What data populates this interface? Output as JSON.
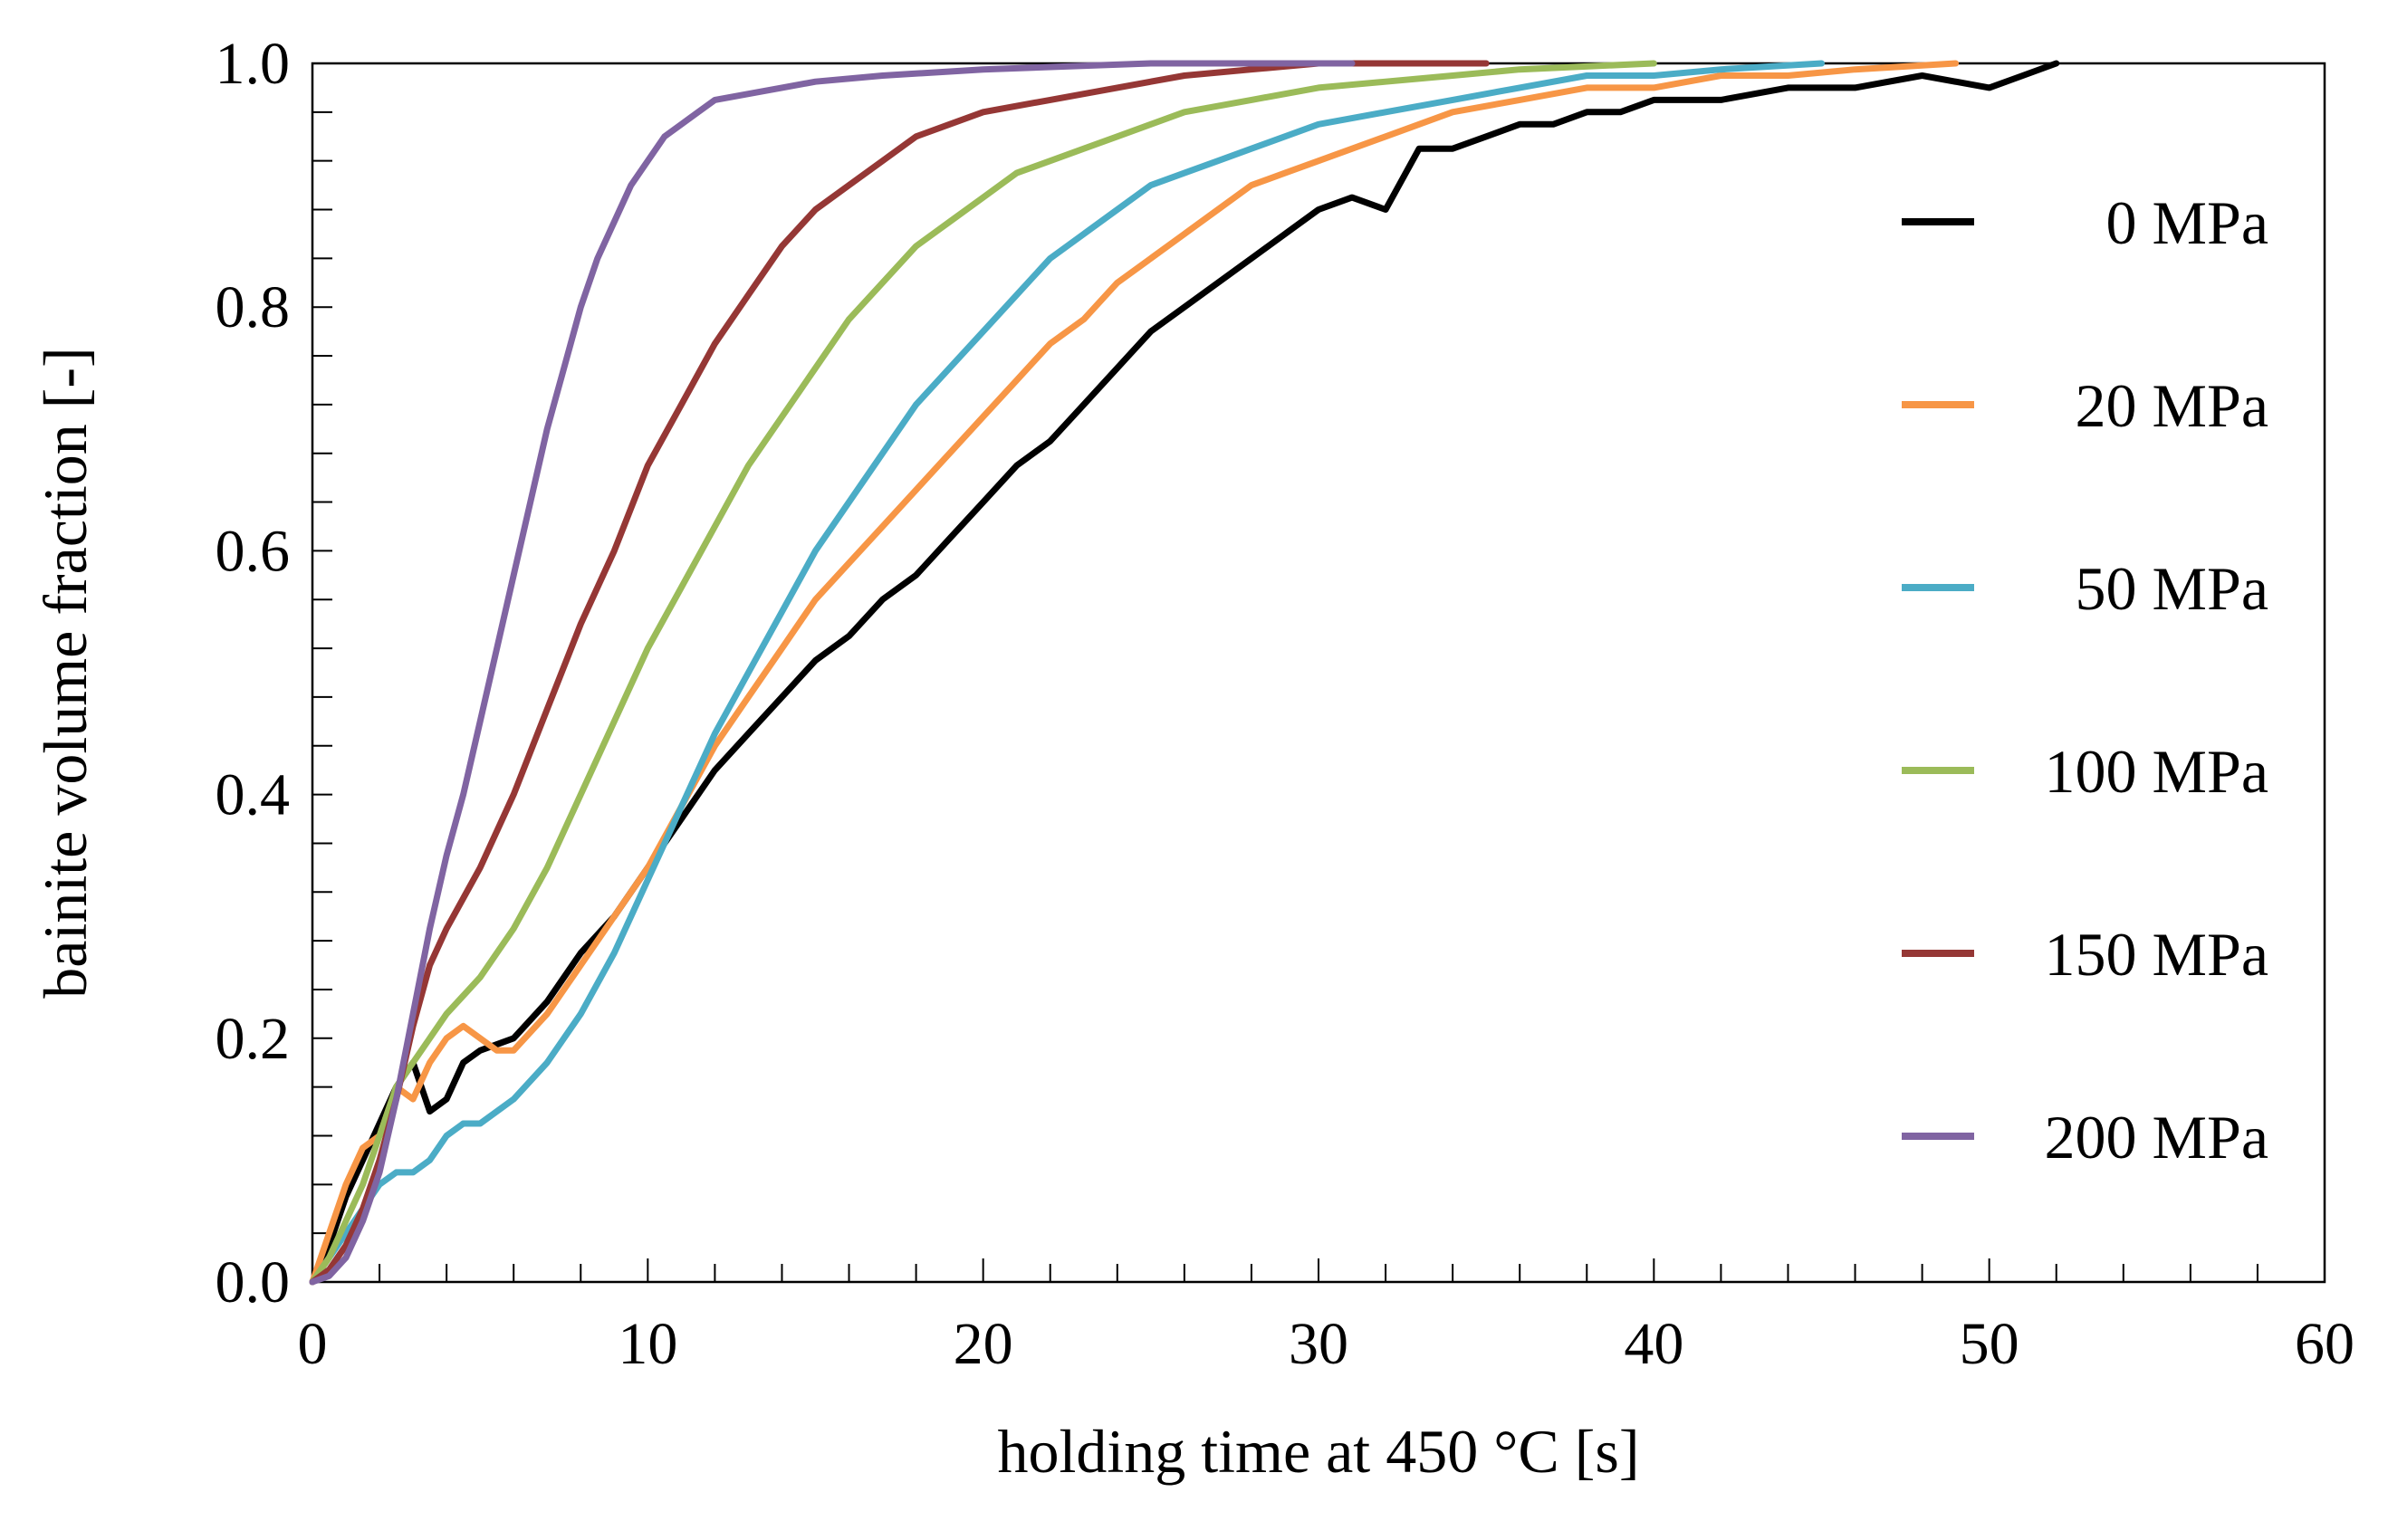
{
  "chart_data": {
    "type": "line",
    "title": "",
    "xlabel": "holding time at 450 °C [s]",
    "ylabel": "bainite volume fraction [-]",
    "xlim": [
      0,
      60
    ],
    "ylim": [
      0,
      1.0
    ],
    "x_ticks": [
      "0",
      "10",
      "20",
      "30",
      "40",
      "50",
      "60"
    ],
    "y_ticks": [
      "0.0",
      "0.2",
      "0.4",
      "0.6",
      "0.8",
      "1.0"
    ],
    "grid": false,
    "legend_position": "right",
    "series": [
      {
        "name": "0 MPa",
        "color": "#000000",
        "points": [
          [
            0,
            0
          ],
          [
            0.5,
            0.03
          ],
          [
            1,
            0.07
          ],
          [
            1.5,
            0.1
          ],
          [
            2,
            0.13
          ],
          [
            2.5,
            0.16
          ],
          [
            3,
            0.18
          ],
          [
            3.5,
            0.14
          ],
          [
            4,
            0.15
          ],
          [
            4.5,
            0.18
          ],
          [
            5,
            0.19
          ],
          [
            6,
            0.2
          ],
          [
            7,
            0.23
          ],
          [
            8,
            0.27
          ],
          [
            9,
            0.3
          ],
          [
            10,
            0.34
          ],
          [
            11,
            0.38
          ],
          [
            12,
            0.42
          ],
          [
            13,
            0.45
          ],
          [
            14,
            0.48
          ],
          [
            15,
            0.51
          ],
          [
            16,
            0.53
          ],
          [
            17,
            0.56
          ],
          [
            18,
            0.58
          ],
          [
            19,
            0.61
          ],
          [
            20,
            0.64
          ],
          [
            21,
            0.67
          ],
          [
            22,
            0.69
          ],
          [
            23,
            0.72
          ],
          [
            24,
            0.75
          ],
          [
            25,
            0.78
          ],
          [
            26,
            0.8
          ],
          [
            27,
            0.82
          ],
          [
            28,
            0.84
          ],
          [
            29,
            0.86
          ],
          [
            30,
            0.88
          ],
          [
            31,
            0.89
          ],
          [
            32,
            0.88
          ],
          [
            33,
            0.93
          ],
          [
            34,
            0.93
          ],
          [
            35,
            0.94
          ],
          [
            36,
            0.95
          ],
          [
            37,
            0.95
          ],
          [
            38,
            0.96
          ],
          [
            39,
            0.96
          ],
          [
            40,
            0.97
          ],
          [
            42,
            0.97
          ],
          [
            44,
            0.98
          ],
          [
            46,
            0.98
          ],
          [
            48,
            0.99
          ],
          [
            50,
            0.98
          ],
          [
            51,
            0.99
          ],
          [
            52,
            1.0
          ]
        ]
      },
      {
        "name": "20 MPa",
        "color": "#f79646",
        "points": [
          [
            0,
            0
          ],
          [
            0.5,
            0.04
          ],
          [
            1,
            0.08
          ],
          [
            1.5,
            0.11
          ],
          [
            2,
            0.12
          ],
          [
            2.5,
            0.16
          ],
          [
            3,
            0.15
          ],
          [
            3.5,
            0.18
          ],
          [
            4,
            0.2
          ],
          [
            4.5,
            0.21
          ],
          [
            5,
            0.2
          ],
          [
            5.5,
            0.19
          ],
          [
            6,
            0.19
          ],
          [
            7,
            0.22
          ],
          [
            8,
            0.26
          ],
          [
            9,
            0.3
          ],
          [
            10,
            0.34
          ],
          [
            11,
            0.39
          ],
          [
            12,
            0.44
          ],
          [
            13,
            0.48
          ],
          [
            14,
            0.52
          ],
          [
            15,
            0.56
          ],
          [
            16,
            0.59
          ],
          [
            17,
            0.62
          ],
          [
            18,
            0.65
          ],
          [
            19,
            0.68
          ],
          [
            20,
            0.71
          ],
          [
            21,
            0.74
          ],
          [
            22,
            0.77
          ],
          [
            23,
            0.79
          ],
          [
            24,
            0.82
          ],
          [
            25,
            0.84
          ],
          [
            26,
            0.86
          ],
          [
            27,
            0.88
          ],
          [
            28,
            0.9
          ],
          [
            29,
            0.91
          ],
          [
            30,
            0.92
          ],
          [
            32,
            0.94
          ],
          [
            34,
            0.96
          ],
          [
            36,
            0.97
          ],
          [
            38,
            0.98
          ],
          [
            40,
            0.98
          ],
          [
            42,
            0.99
          ],
          [
            44,
            0.99
          ],
          [
            46,
            0.995
          ],
          [
            49,
            1.0
          ]
        ]
      },
      {
        "name": "50 MPa",
        "color": "#4bacc6",
        "points": [
          [
            0,
            0
          ],
          [
            0.5,
            0.02
          ],
          [
            1,
            0.04
          ],
          [
            1.5,
            0.06
          ],
          [
            2,
            0.08
          ],
          [
            2.5,
            0.09
          ],
          [
            3,
            0.09
          ],
          [
            3.5,
            0.1
          ],
          [
            4,
            0.12
          ],
          [
            4.5,
            0.13
          ],
          [
            5,
            0.13
          ],
          [
            6,
            0.15
          ],
          [
            7,
            0.18
          ],
          [
            8,
            0.22
          ],
          [
            9,
            0.27
          ],
          [
            10,
            0.33
          ],
          [
            11,
            0.39
          ],
          [
            12,
            0.45
          ],
          [
            13,
            0.5
          ],
          [
            14,
            0.55
          ],
          [
            15,
            0.6
          ],
          [
            16,
            0.64
          ],
          [
            17,
            0.68
          ],
          [
            18,
            0.72
          ],
          [
            19,
            0.75
          ],
          [
            20,
            0.78
          ],
          [
            21,
            0.81
          ],
          [
            22,
            0.84
          ],
          [
            23,
            0.86
          ],
          [
            24,
            0.88
          ],
          [
            25,
            0.9
          ],
          [
            26,
            0.91
          ],
          [
            27,
            0.92
          ],
          [
            28,
            0.93
          ],
          [
            30,
            0.95
          ],
          [
            32,
            0.96
          ],
          [
            34,
            0.97
          ],
          [
            36,
            0.98
          ],
          [
            38,
            0.99
          ],
          [
            40,
            0.99
          ],
          [
            42,
            0.995
          ],
          [
            45,
            1.0
          ]
        ]
      },
      {
        "name": "100 MPa",
        "color": "#9bbb59",
        "points": [
          [
            0,
            0
          ],
          [
            0.5,
            0.02
          ],
          [
            1,
            0.05
          ],
          [
            1.5,
            0.08
          ],
          [
            2,
            0.12
          ],
          [
            2.5,
            0.16
          ],
          [
            3,
            0.18
          ],
          [
            3.5,
            0.2
          ],
          [
            4,
            0.22
          ],
          [
            5,
            0.25
          ],
          [
            6,
            0.29
          ],
          [
            7,
            0.34
          ],
          [
            8,
            0.4
          ],
          [
            9,
            0.46
          ],
          [
            10,
            0.52
          ],
          [
            11,
            0.57
          ],
          [
            12,
            0.62
          ],
          [
            13,
            0.67
          ],
          [
            14,
            0.71
          ],
          [
            15,
            0.75
          ],
          [
            16,
            0.79
          ],
          [
            17,
            0.82
          ],
          [
            18,
            0.85
          ],
          [
            19,
            0.87
          ],
          [
            20,
            0.89
          ],
          [
            21,
            0.91
          ],
          [
            22,
            0.92
          ],
          [
            23,
            0.93
          ],
          [
            24,
            0.94
          ],
          [
            25,
            0.95
          ],
          [
            26,
            0.96
          ],
          [
            28,
            0.97
          ],
          [
            30,
            0.98
          ],
          [
            32,
            0.985
          ],
          [
            34,
            0.99
          ],
          [
            36,
            0.995
          ],
          [
            40,
            1.0
          ]
        ]
      },
      {
        "name": "150 MPa",
        "color": "#953735",
        "points": [
          [
            0,
            0
          ],
          [
            0.5,
            0.01
          ],
          [
            1,
            0.03
          ],
          [
            1.5,
            0.06
          ],
          [
            2,
            0.1
          ],
          [
            2.5,
            0.15
          ],
          [
            3,
            0.21
          ],
          [
            3.5,
            0.26
          ],
          [
            4,
            0.29
          ],
          [
            5,
            0.34
          ],
          [
            6,
            0.4
          ],
          [
            7,
            0.47
          ],
          [
            8,
            0.54
          ],
          [
            9,
            0.6
          ],
          [
            10,
            0.67
          ],
          [
            11,
            0.72
          ],
          [
            12,
            0.77
          ],
          [
            13,
            0.81
          ],
          [
            14,
            0.85
          ],
          [
            15,
            0.88
          ],
          [
            16,
            0.9
          ],
          [
            17,
            0.92
          ],
          [
            18,
            0.94
          ],
          [
            19,
            0.95
          ],
          [
            20,
            0.96
          ],
          [
            22,
            0.97
          ],
          [
            24,
            0.98
          ],
          [
            26,
            0.99
          ],
          [
            28,
            0.995
          ],
          [
            30,
            1.0
          ],
          [
            35,
            1.0
          ]
        ]
      },
      {
        "name": "200 MPa",
        "color": "#8064a2",
        "points": [
          [
            0,
            0
          ],
          [
            0.5,
            0.005
          ],
          [
            1,
            0.02
          ],
          [
            1.5,
            0.05
          ],
          [
            2,
            0.09
          ],
          [
            2.5,
            0.15
          ],
          [
            3,
            0.22
          ],
          [
            3.5,
            0.29
          ],
          [
            4,
            0.35
          ],
          [
            4.5,
            0.4
          ],
          [
            5,
            0.46
          ],
          [
            5.5,
            0.52
          ],
          [
            6,
            0.58
          ],
          [
            6.5,
            0.64
          ],
          [
            7,
            0.7
          ],
          [
            7.5,
            0.75
          ],
          [
            8,
            0.8
          ],
          [
            8.5,
            0.84
          ],
          [
            9,
            0.87
          ],
          [
            9.5,
            0.9
          ],
          [
            10,
            0.92
          ],
          [
            10.5,
            0.94
          ],
          [
            11,
            0.95
          ],
          [
            11.5,
            0.96
          ],
          [
            12,
            0.97
          ],
          [
            13,
            0.975
          ],
          [
            14,
            0.98
          ],
          [
            15,
            0.985
          ],
          [
            17,
            0.99
          ],
          [
            20,
            0.995
          ],
          [
            25,
            1.0
          ],
          [
            31,
            1.0
          ]
        ]
      }
    ]
  }
}
